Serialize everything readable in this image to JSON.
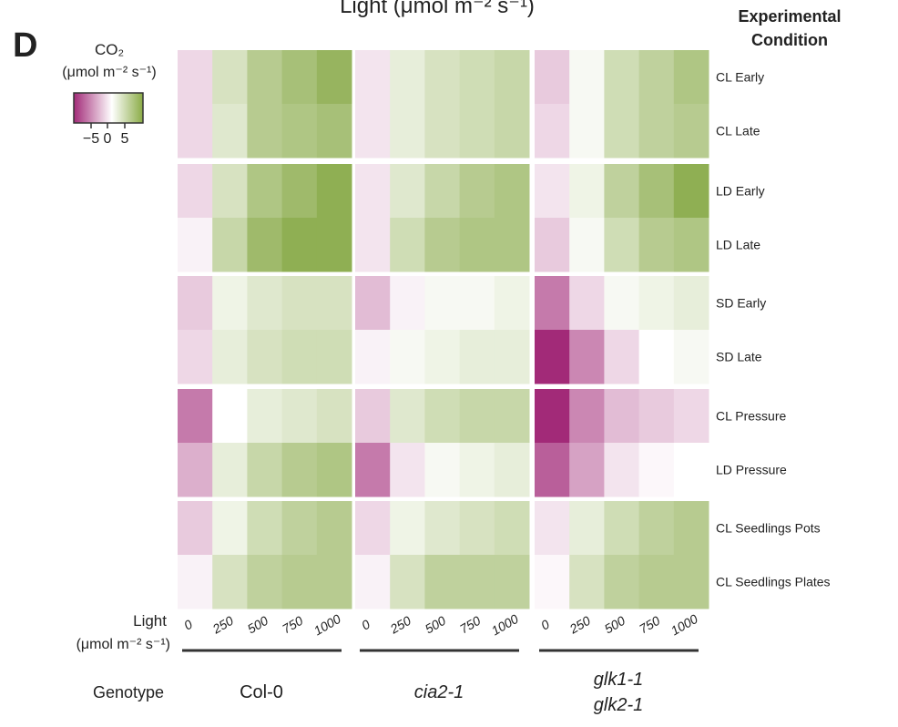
{
  "chart_data": {
    "type": "heatmap",
    "panel_label": "D",
    "title": "Light (μmol m⁻² s⁻¹)",
    "legend": {
      "title": "CO₂",
      "units": "(μmol m⁻² s⁻¹)",
      "ticks": [
        "−5",
        "0",
        "5"
      ],
      "range": [
        -8,
        8
      ],
      "low_color": "#a22a78",
      "mid_color": "#ffffff",
      "high_color": "#7fa33a"
    },
    "row_header": "Experimental Condition",
    "rows": [
      "CL Early",
      "CL Late",
      "LD Early",
      "LD Late",
      "SD Early",
      "SD Late",
      "CL Pressure",
      "LD Pressure",
      "CL Seedlings Pots",
      "CL Seedlings Plates"
    ],
    "x_label": "Light",
    "x_units": "(μmol m⁻² s⁻¹)",
    "x_ticks": [
      "0",
      "250",
      "500",
      "750",
      "1000"
    ],
    "genotype_label": "Genotype",
    "genotypes": [
      {
        "name": "Col-0",
        "italic": false,
        "values": [
          [
            -1.5,
            2.5,
            4.5,
            5.5,
            6.5
          ],
          [
            -1.5,
            2,
            4.5,
            5,
            5.5
          ],
          [
            -1.5,
            2.5,
            5,
            6,
            7
          ],
          [
            -0.5,
            3.5,
            6,
            7,
            7
          ],
          [
            -2,
            1,
            2,
            2.5,
            2.5
          ],
          [
            -1.5,
            1.5,
            2.5,
            3,
            3
          ],
          [
            -5,
            0,
            1.5,
            2,
            2.5
          ],
          [
            -3,
            1.5,
            3.5,
            4.5,
            5
          ],
          [
            -2,
            1,
            3,
            4,
            4.5
          ],
          [
            -0.5,
            2.5,
            4,
            4.5,
            4.5
          ]
        ]
      },
      {
        "name": "cia2-1",
        "italic": true,
        "values": [
          [
            -1,
            1.5,
            2.5,
            3,
            3.5
          ],
          [
            -1,
            1.5,
            2.5,
            3,
            3.5
          ],
          [
            -1,
            2,
            3.5,
            4.5,
            5
          ],
          [
            -1,
            3,
            4.5,
            5,
            5
          ],
          [
            -2.5,
            -0.5,
            0.5,
            0.5,
            1
          ],
          [
            -0.5,
            0.5,
            1,
            1.5,
            1.5
          ],
          [
            -2,
            2,
            3,
            3.5,
            3.5
          ],
          [
            -5,
            -1,
            0.5,
            1,
            1.5
          ],
          [
            -1.5,
            1,
            2,
            2.5,
            3
          ],
          [
            -0.5,
            2.5,
            4,
            4,
            4
          ]
        ]
      },
      {
        "name": "glk1-1\nglk2-1",
        "name_lines": [
          "glk1-1",
          "glk2-1"
        ],
        "italic": true,
        "values": [
          [
            -2,
            0.5,
            3,
            4,
            5
          ],
          [
            -1.5,
            0.5,
            3,
            4,
            4.5
          ],
          [
            -1,
            1,
            4,
            5.5,
            7
          ],
          [
            -2,
            0.5,
            3,
            4.5,
            5
          ],
          [
            -5,
            -1.5,
            0.5,
            1,
            1.5
          ],
          [
            -8,
            -4.5,
            -1.5,
            0,
            0.5
          ],
          [
            -8,
            -4.5,
            -2.5,
            -2,
            -1.5
          ],
          [
            -6,
            -3.5,
            -1,
            -0.3,
            0
          ],
          [
            -1,
            1.5,
            3,
            4,
            4.5
          ],
          [
            -0.3,
            2.5,
            4,
            4.5,
            4.5
          ]
        ]
      }
    ]
  }
}
